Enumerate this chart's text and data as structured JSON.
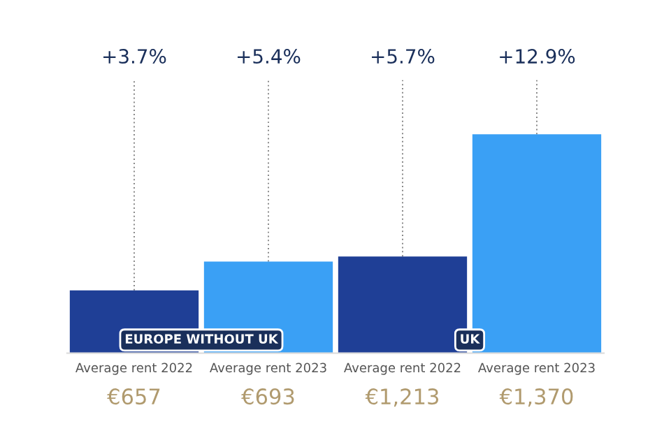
{
  "chart_data": {
    "type": "bar",
    "categories": [
      "Average rent 2022\n€657",
      "Average rent 2023\n€693",
      "Average rent 2022\n€1,213",
      "Average rent 2023\n€1,370"
    ],
    "values": [
      3.7,
      5.4,
      5.7,
      12.9
    ],
    "colors": [
      "#1f3f96",
      "#3aa0f5",
      "#1f3f96",
      "#3aa0f5"
    ],
    "value_labels": [
      "+3.7%",
      "+5.4%",
      "+5.7%",
      "+12.9%"
    ],
    "annotations": [
      "EUROPE WITHOUT UK",
      "UK"
    ],
    "grid": "x",
    "legend": false
  }
}
